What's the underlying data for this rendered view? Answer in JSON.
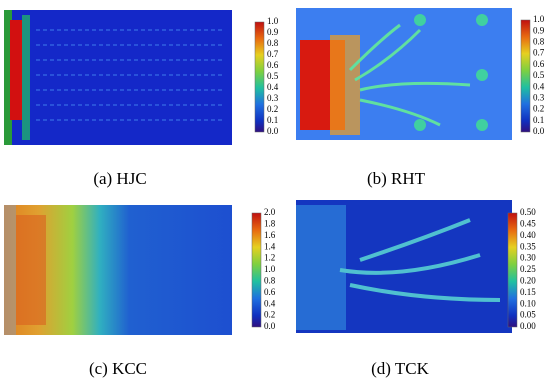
{
  "panels": [
    {
      "caption": "(a) HJC",
      "colorbar_ticks": [
        "1.0",
        "0.9",
        "0.8",
        "0.7",
        "0.6",
        "0.5",
        "0.4",
        "0.3",
        "0.2",
        "0.1",
        "0.0"
      ]
    },
    {
      "caption": "(b) RHT",
      "colorbar_ticks": [
        "1.0",
        "0.9",
        "0.8",
        "0.7",
        "0.6",
        "0.5",
        "0.4",
        "0.3",
        "0.2",
        "0.1",
        "0.0"
      ]
    },
    {
      "caption": "(c) KCC",
      "colorbar_ticks": [
        "2.0",
        "1.8",
        "1.6",
        "1.4",
        "1.2",
        "1.0",
        "0.8",
        "0.6",
        "0.4",
        "0.2",
        "0.0"
      ]
    },
    {
      "caption": "(d) TCK",
      "colorbar_ticks": [
        "0.50",
        "0.45",
        "0.40",
        "0.35",
        "0.30",
        "0.25",
        "0.20",
        "0.15",
        "0.10",
        "0.05",
        "0.00"
      ]
    }
  ]
}
